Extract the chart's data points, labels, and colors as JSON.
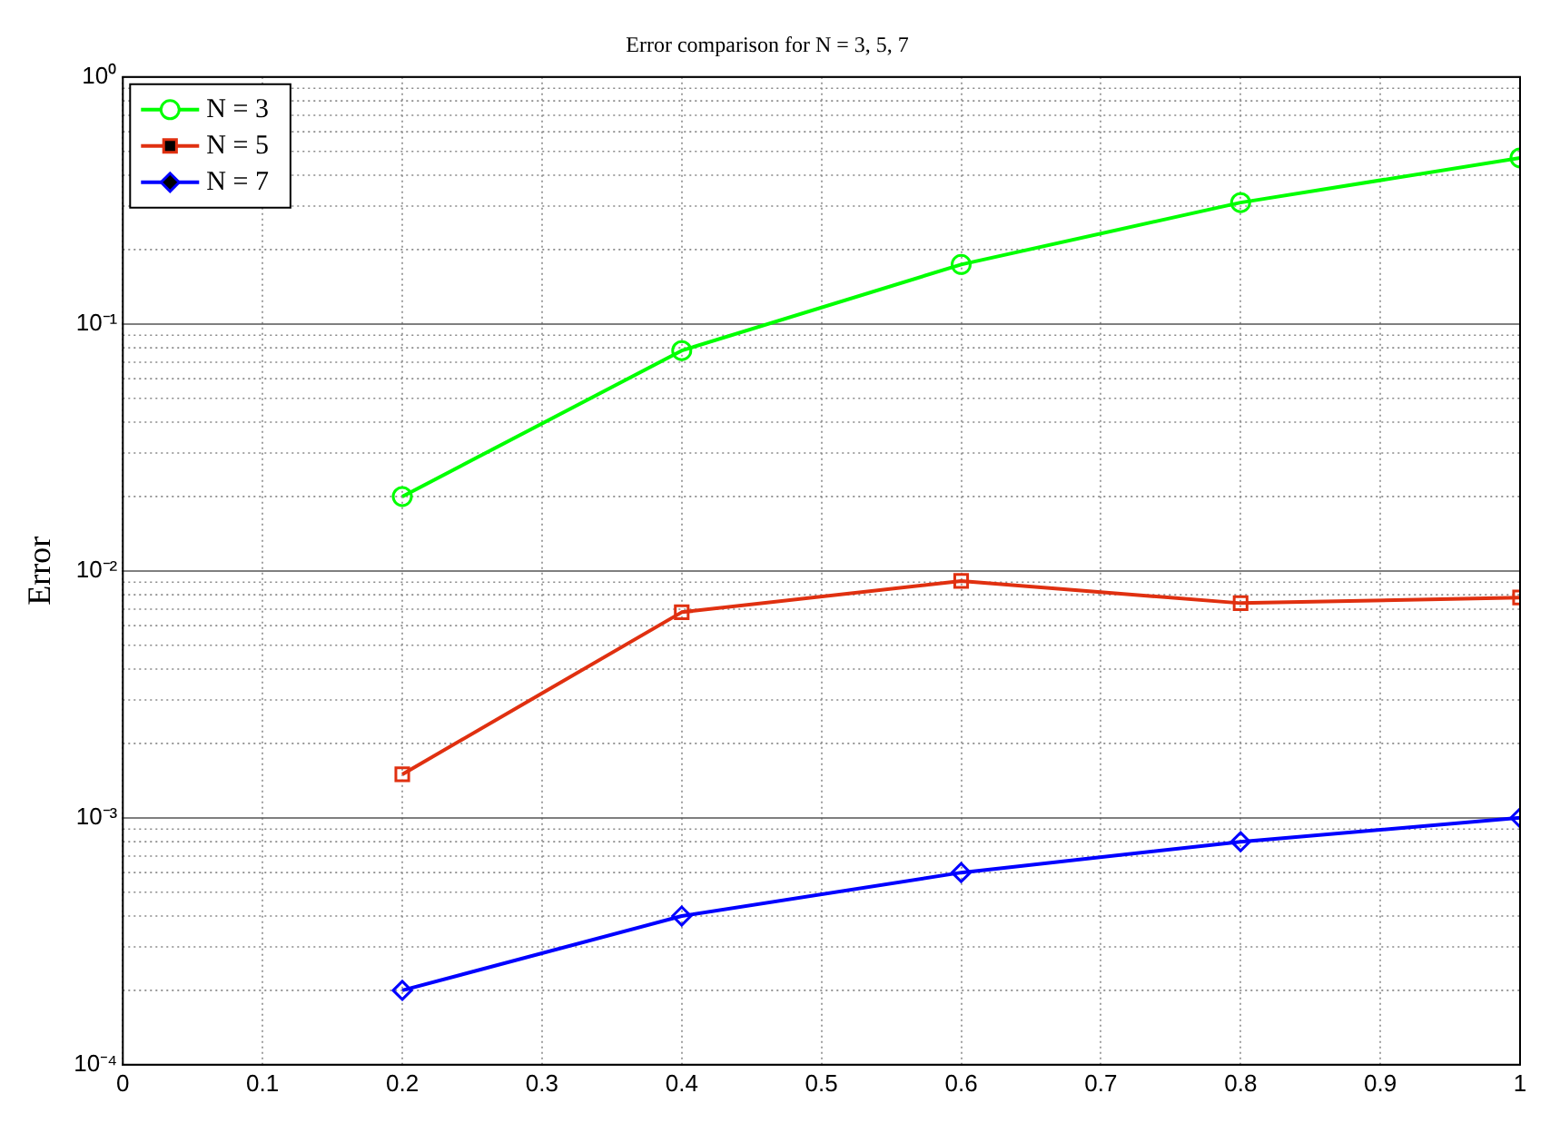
{
  "chart_data": {
    "type": "line",
    "title": "Error comparison for N = 3, 5, 7",
    "ylabel": "Error",
    "x": [
      0.2,
      0.4,
      0.6,
      0.8,
      1.0
    ],
    "series": [
      {
        "name": "N = 3",
        "color": "#00ff00",
        "marker": "circle",
        "values": [
          0.02,
          0.078,
          0.174,
          0.31,
          0.47
        ]
      },
      {
        "name": "N = 5",
        "color": "#e03010",
        "marker": "square",
        "values": [
          0.0015,
          0.0068,
          0.0091,
          0.0074,
          0.0078
        ]
      },
      {
        "name": "N = 7",
        "color": "#0000ff",
        "marker": "diamond",
        "values": [
          0.0002,
          0.0004,
          0.0006,
          0.0008,
          0.001
        ]
      }
    ],
    "xlim": [
      0,
      1
    ],
    "xticks": [
      0,
      0.1,
      0.2,
      0.3,
      0.4,
      0.5,
      0.6,
      0.7,
      0.8,
      0.9,
      1
    ],
    "ylim": [
      0.0001,
      1
    ],
    "yticks": [
      {
        "value": 0.0001,
        "label": "10⁻⁴"
      },
      {
        "value": 0.001,
        "label": "10⁻³"
      },
      {
        "value": 0.01,
        "label": "10⁻²"
      },
      {
        "value": 0.1,
        "label": "10⁻¹"
      },
      {
        "value": 1,
        "label": "10⁰"
      }
    ],
    "log": true,
    "grid": true,
    "legend": "top left",
    "line_style": "solid"
  }
}
